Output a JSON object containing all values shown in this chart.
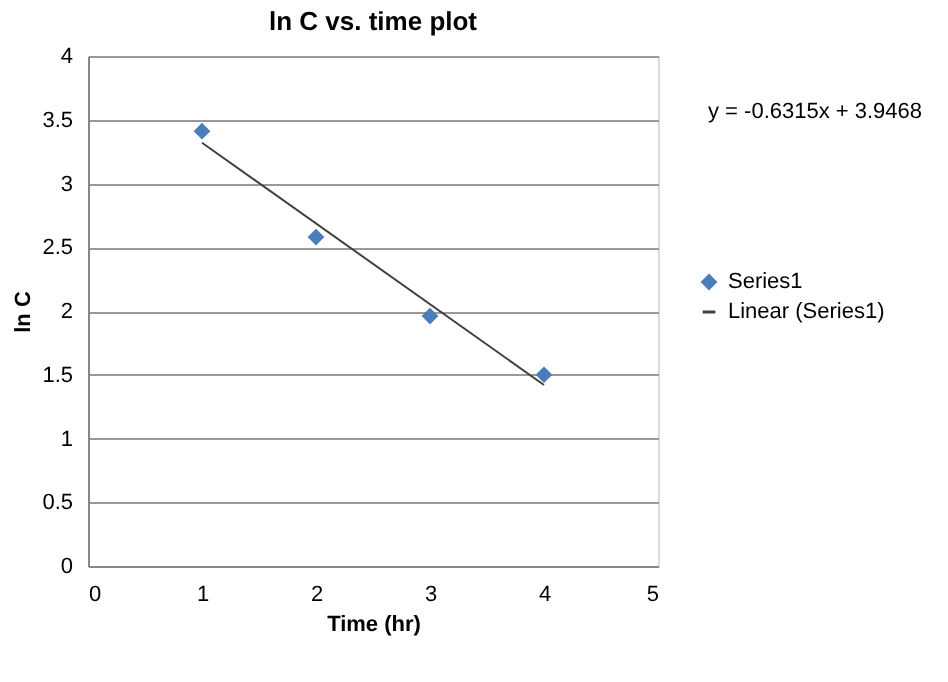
{
  "chart_data": {
    "type": "scatter",
    "title": "ln C vs. time plot",
    "xlabel": "Time (hr)",
    "ylabel": "ln C",
    "x": [
      1,
      2,
      3,
      4
    ],
    "series": [
      {
        "name": "Series1",
        "color": "#4a7ebb",
        "marker": "diamond",
        "values": [
          3.41,
          2.58,
          1.96,
          1.5
        ]
      },
      {
        "name": "Linear (Series1)",
        "type": "line",
        "color": "#404040",
        "marker": "none",
        "x": [
          1,
          4
        ],
        "values": [
          3.32,
          1.42
        ]
      }
    ],
    "annotations": [
      "y = -0.6315x + 3.9468"
    ],
    "xlim": [
      0,
      5
    ],
    "xticks": [
      0,
      1,
      2,
      3,
      4,
      5
    ],
    "ylim": [
      0,
      4
    ],
    "yticks": [
      0,
      0.5,
      1,
      1.5,
      2,
      2.5,
      3,
      3.5,
      4
    ],
    "grid": "y",
    "legend": "right"
  }
}
